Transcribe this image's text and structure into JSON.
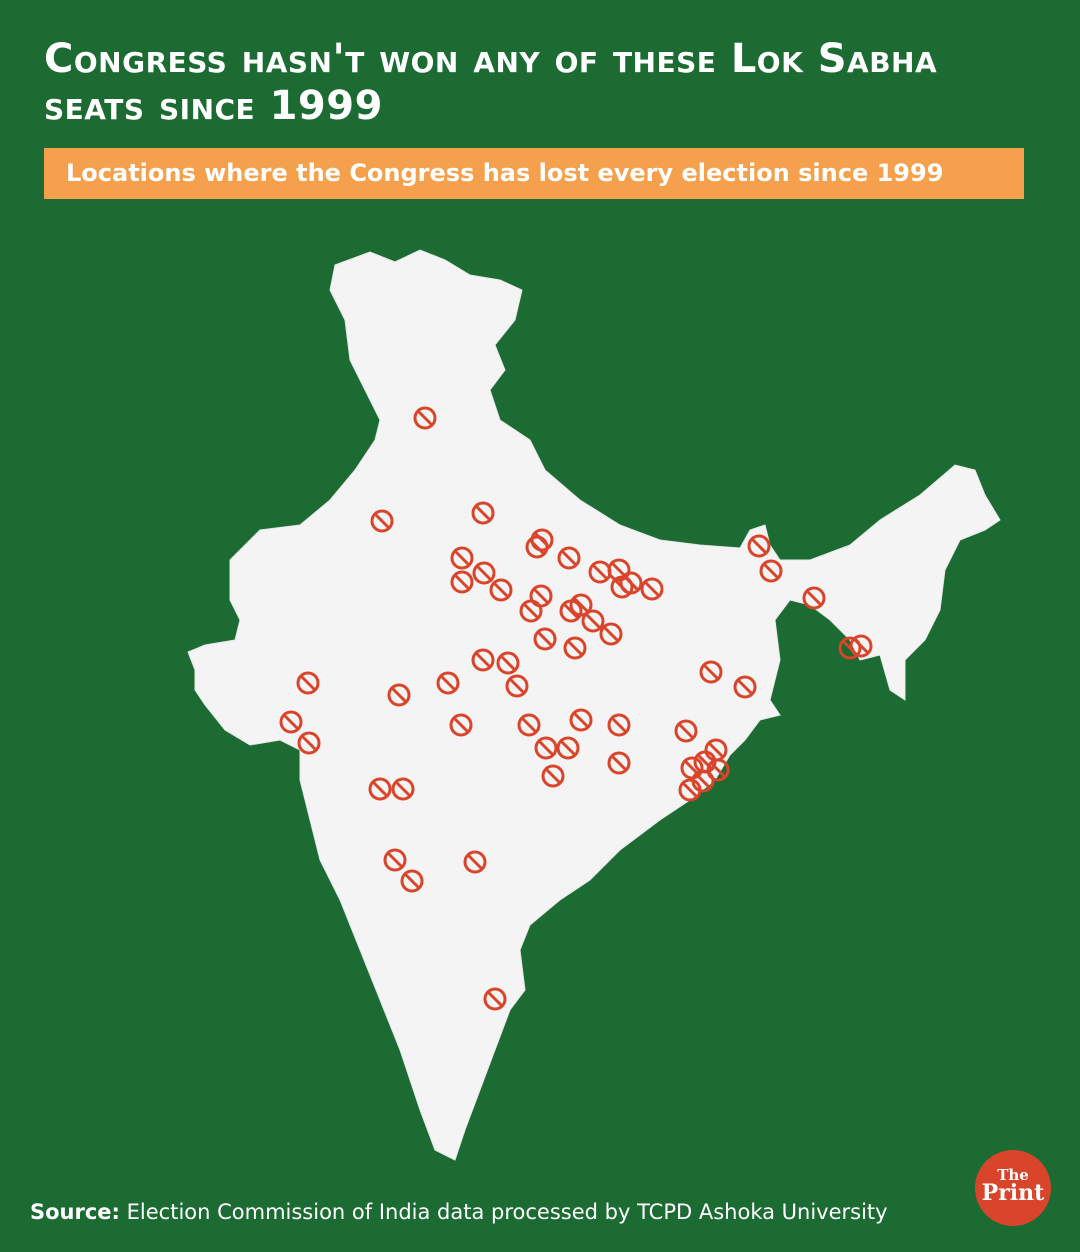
{
  "header": {
    "title": "Congress hasn't won any of these Lok Sabha seats since 1999",
    "subtitle": "Locations where the Congress has lost every election since 1999"
  },
  "footer": {
    "source_label": "Source:",
    "source_text": "Election Commission of India data processed by TCPD Ashoka University"
  },
  "logo": {
    "line1": "The",
    "line2": "Print"
  }
}
